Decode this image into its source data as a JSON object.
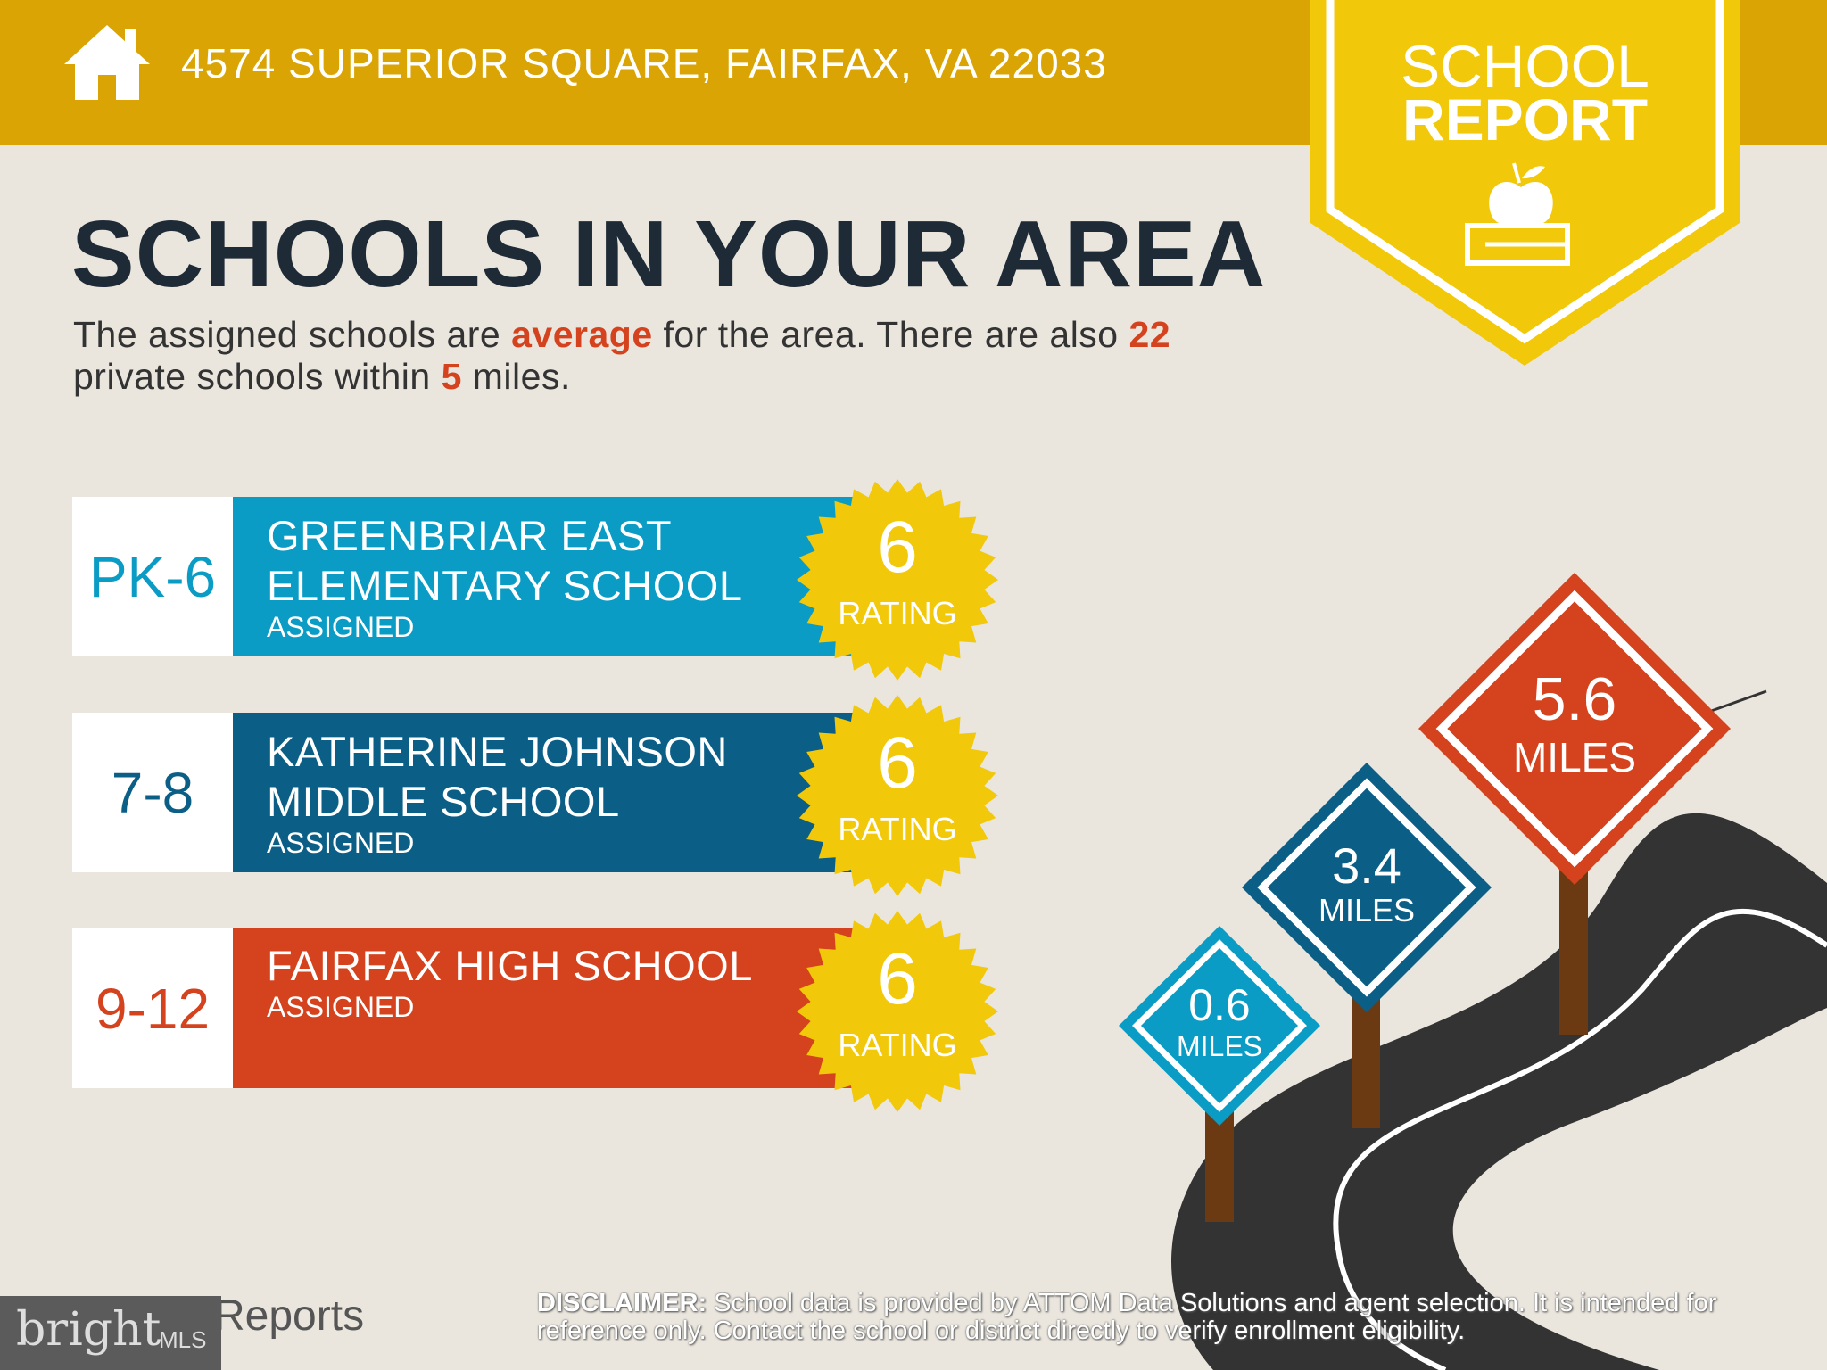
{
  "header": {
    "address": "4574 SUPERIOR SQUARE, FAIRFAX, VA 22033",
    "icon": "house-icon"
  },
  "badge": {
    "line1": "SCHOOL",
    "line2": "REPORT",
    "icon": "apple-on-book-icon"
  },
  "title": "SCHOOLS IN YOUR AREA",
  "summary": {
    "p1": "The assigned schools are ",
    "quality": "average",
    "p2": " for the area. There are also ",
    "private_count": "22",
    "p3": " private schools within ",
    "radius": "5",
    "p4": " miles."
  },
  "schools": [
    {
      "grade": "PK-6",
      "name_line1": "GREENBRIAR EAST",
      "name_line2": "ELEMENTARY SCHOOL",
      "status": "ASSIGNED",
      "rating": "6",
      "rating_label": "RATING",
      "color": "#0A9CC4",
      "grade_color": "#0A9CC4"
    },
    {
      "grade": "7-8",
      "name_line1": "KATHERINE JOHNSON",
      "name_line2": "MIDDLE SCHOOL",
      "status": "ASSIGNED",
      "rating": "6",
      "rating_label": "RATING",
      "color": "#0B5F86",
      "grade_color": "#0B5F86"
    },
    {
      "grade": "9-12",
      "name_line1": "FAIRFAX HIGH SCHOOL",
      "name_line2": "",
      "status": "ASSIGNED",
      "rating": "6",
      "rating_label": "RATING",
      "color": "#D4431E",
      "grade_color": "#D4431E"
    }
  ],
  "signs": [
    {
      "distance": "0.6",
      "unit": "MILES",
      "color": "#0A9CC4"
    },
    {
      "distance": "3.4",
      "unit": "MILES",
      "color": "#0B5F86"
    },
    {
      "distance": "5.6",
      "unit": "MILES",
      "color": "#D4431E"
    }
  ],
  "footer": {
    "brand": "Reports",
    "disclaimer_label": "DISCLAIMER:",
    "disclaimer": " School data is provided by ATTOM Data Solutions and agent selection. It is intended for reference only. Contact the school or district directly to verify enrollment eligibility.",
    "watermark": "bright MLS"
  }
}
